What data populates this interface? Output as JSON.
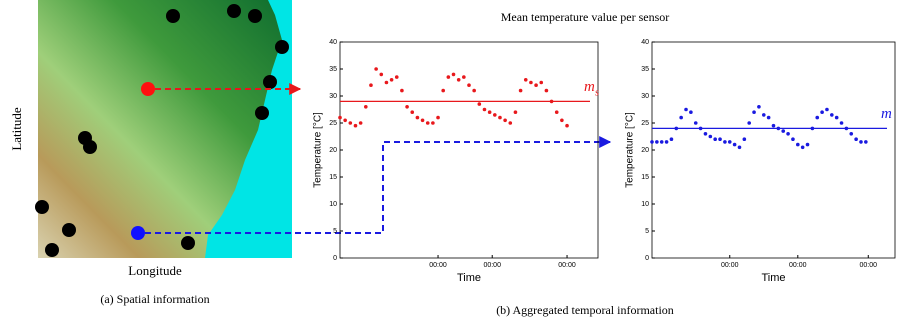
{
  "figure": {
    "title": "Mean temperature value per sensor",
    "map_caption": "(a) Spatial information",
    "chart_caption": "(b) Aggregated temporal information"
  },
  "map": {
    "xlabel": "Longitude",
    "ylabel": "Latitude"
  },
  "chart_data": [
    {
      "type": "line",
      "xlabel": "Time",
      "ylabel": "Temperature [°C]",
      "color": "#e8181c",
      "xlim": [
        0,
        100
      ],
      "ylim": [
        0,
        40
      ],
      "xticks": [
        {
          "value": 38,
          "label": "00:00"
        },
        {
          "value": 59,
          "label": "00:00"
        },
        {
          "value": 88,
          "label": "00:00"
        }
      ],
      "yticks": [
        0,
        5,
        10,
        15,
        20,
        25,
        30,
        35,
        40
      ],
      "hline": {
        "value": 29,
        "label": "m",
        "subscript": "s"
      },
      "x": [
        0,
        2,
        4,
        6,
        8,
        10,
        12,
        14,
        16,
        18,
        20,
        22,
        24,
        26,
        28,
        30,
        32,
        34,
        36,
        38,
        40,
        42,
        44,
        46,
        48,
        50,
        52,
        54,
        56,
        58,
        60,
        62,
        64,
        66,
        68,
        70,
        72,
        74,
        76,
        78,
        80,
        82,
        84,
        86,
        88
      ],
      "series": [
        {
          "color": "#e8181c",
          "values": [
            26,
            25.5,
            25,
            24.5,
            25,
            28,
            32,
            35,
            34,
            32.5,
            33,
            33.5,
            31,
            28,
            27,
            26,
            25.5,
            25,
            25,
            26,
            31,
            33.5,
            34,
            33,
            33.5,
            32,
            31,
            28.5,
            27.5,
            27,
            26.5,
            26,
            25.5,
            25,
            27,
            31,
            33,
            32.5,
            32,
            32.5,
            31,
            29,
            27,
            25.5,
            24.5
          ]
        }
      ]
    },
    {
      "type": "line",
      "xlabel": "Time",
      "ylabel": "Temperature [°C]",
      "color": "#1a1ae0",
      "xlim": [
        0,
        100
      ],
      "ylim": [
        0,
        40
      ],
      "xticks": [
        {
          "value": 32,
          "label": "00:00"
        },
        {
          "value": 60,
          "label": "00:00"
        },
        {
          "value": 89,
          "label": "00:00"
        }
      ],
      "yticks": [
        0,
        5,
        10,
        15,
        20,
        25,
        30,
        35,
        40
      ],
      "hline": {
        "value": 24,
        "label": "m"
      },
      "x": [
        0,
        2,
        4,
        6,
        8,
        10,
        12,
        14,
        16,
        18,
        20,
        22,
        24,
        26,
        28,
        30,
        32,
        34,
        36,
        38,
        40,
        42,
        44,
        46,
        48,
        50,
        52,
        54,
        56,
        58,
        60,
        62,
        64,
        66,
        68,
        70,
        72,
        74,
        76,
        78,
        80,
        82,
        84,
        86,
        88
      ],
      "series": [
        {
          "color": "#1a1ae0",
          "values": [
            21.5,
            21.5,
            21.5,
            21.5,
            22,
            24,
            26,
            27.5,
            27,
            25,
            24,
            23,
            22.5,
            22,
            22,
            21.5,
            21.5,
            21,
            20.5,
            22,
            25,
            27,
            28,
            26.5,
            26,
            24.5,
            24,
            23.5,
            23,
            22,
            21,
            20.5,
            21,
            24,
            26,
            27,
            27.5,
            26.5,
            26,
            25,
            24,
            23,
            22,
            21.5,
            21.5
          ]
        }
      ]
    }
  ]
}
